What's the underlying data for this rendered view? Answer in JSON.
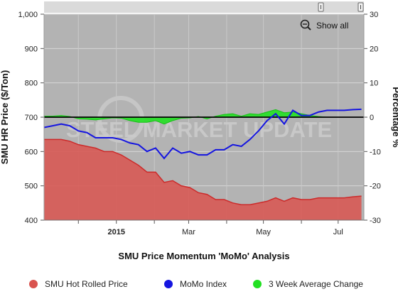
{
  "chart_data": {
    "type": "area",
    "title": "SMU Price Momentum 'MoMo' Analysis",
    "watermark": "STEEL MARKET UPDATE",
    "show_all_label": "Show all",
    "ylabel_left": "SMU HR Price ($/Ton)",
    "ylabel_right": "Percentage %",
    "y_left_lim": [
      400,
      1000
    ],
    "y_left_ticks": [
      "400",
      "500",
      "600",
      "700",
      "800",
      "900",
      "1,000"
    ],
    "y_right_lim": [
      -30,
      30
    ],
    "y_right_ticks": [
      "-30",
      "-20",
      "-10",
      "0",
      "10",
      "20",
      "30"
    ],
    "x_lim": [
      "2014-11-03",
      "2015-07-22"
    ],
    "x_ticks": [
      {
        "date": "2015-01-01",
        "label": "2015"
      },
      {
        "date": "2015-03-01",
        "label": "Mar"
      },
      {
        "date": "2015-05-01",
        "label": "May"
      },
      {
        "date": "2015-07-01",
        "label": "Jul"
      }
    ],
    "grid": true,
    "legend_position": "bottom",
    "colors": {
      "plot_bg": "#b3b3b3",
      "hot_rolled": "#d9534f",
      "momo": "#1515e0",
      "three_week": "#22e022",
      "zero_line": "#000000",
      "navigator_bg": "#dadada"
    },
    "x": [
      "2014-11-03",
      "2014-11-10",
      "2014-11-17",
      "2014-11-24",
      "2014-12-01",
      "2014-12-08",
      "2014-12-15",
      "2014-12-22",
      "2014-12-29",
      "2015-01-05",
      "2015-01-12",
      "2015-01-19",
      "2015-01-26",
      "2015-02-02",
      "2015-02-09",
      "2015-02-16",
      "2015-02-23",
      "2015-03-02",
      "2015-03-09",
      "2015-03-16",
      "2015-03-23",
      "2015-03-30",
      "2015-04-06",
      "2015-04-13",
      "2015-04-20",
      "2015-04-27",
      "2015-05-04",
      "2015-05-11",
      "2015-05-18",
      "2015-05-25",
      "2015-06-01",
      "2015-06-08",
      "2015-06-15",
      "2015-06-22",
      "2015-06-29",
      "2015-07-06",
      "2015-07-13",
      "2015-07-20"
    ],
    "series": [
      {
        "name": "SMU Hot Rolled Price",
        "axis": "left",
        "values": [
          635,
          635,
          635,
          630,
          620,
          615,
          610,
          600,
          600,
          590,
          575,
          560,
          540,
          540,
          510,
          515,
          500,
          495,
          480,
          475,
          460,
          460,
          450,
          445,
          445,
          450,
          455,
          465,
          455,
          465,
          460,
          460,
          465,
          465,
          465,
          465,
          468,
          470
        ]
      },
      {
        "name": "MoMo Index",
        "axis": "right",
        "values": [
          -3,
          -2.5,
          -2,
          -2.5,
          -4,
          -4.5,
          -6,
          -6,
          -6,
          -6.5,
          -7.5,
          -8,
          -10,
          -9,
          -12,
          -9,
          -10.5,
          -10,
          -11,
          -11,
          -9.5,
          -9.5,
          -8,
          -8.5,
          -6.5,
          -4,
          -1,
          1,
          -2,
          2,
          0.5,
          0.5,
          1.5,
          2,
          2,
          2,
          2.2,
          2.3
        ]
      },
      {
        "name": "3 Week Average Change",
        "axis": "right",
        "values": [
          0.3,
          0.3,
          0.5,
          0.2,
          -0.5,
          -0.6,
          -0.8,
          -0.5,
          -0.2,
          -0.3,
          -1,
          -1.5,
          -1.5,
          -1,
          -2,
          -1,
          -0.3,
          -0.2,
          0.2,
          -0.5,
          0.3,
          0.8,
          1,
          0.3,
          1,
          0.8,
          1.5,
          2.2,
          1.3,
          1.5,
          1,
          0.5,
          0.2,
          0,
          0,
          0,
          0,
          0
        ]
      }
    ]
  }
}
